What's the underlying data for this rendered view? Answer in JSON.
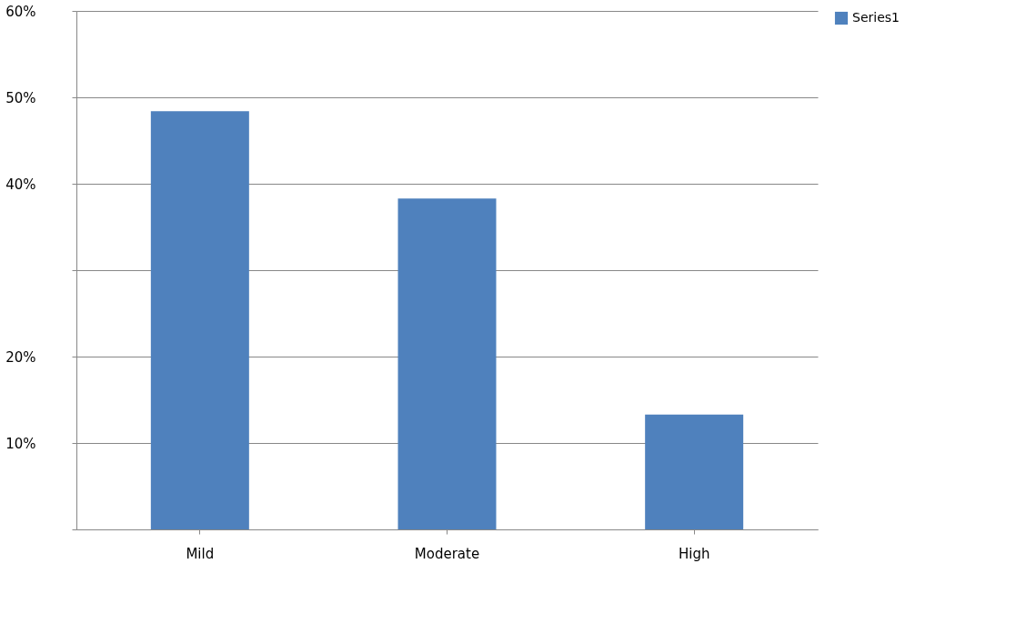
{
  "chart_data": {
    "type": "bar",
    "categories": [
      "Mild",
      "Moderate",
      "High"
    ],
    "series": [
      {
        "name": "Series1",
        "color": "#4f81bd",
        "values": [
          48.4,
          38.3,
          13.3
        ]
      }
    ],
    "ylim": [
      0,
      60
    ],
    "yticks": [
      {
        "value": 0,
        "label": null
      },
      {
        "value": 10,
        "label": "10%"
      },
      {
        "value": 20,
        "label": "20%"
      },
      {
        "value": 30,
        "label": null
      },
      {
        "value": 40,
        "label": "40%"
      },
      {
        "value": 50,
        "label": "50%"
      },
      {
        "value": 60,
        "label": "60%"
      }
    ],
    "grid": "y",
    "legend": "right"
  }
}
